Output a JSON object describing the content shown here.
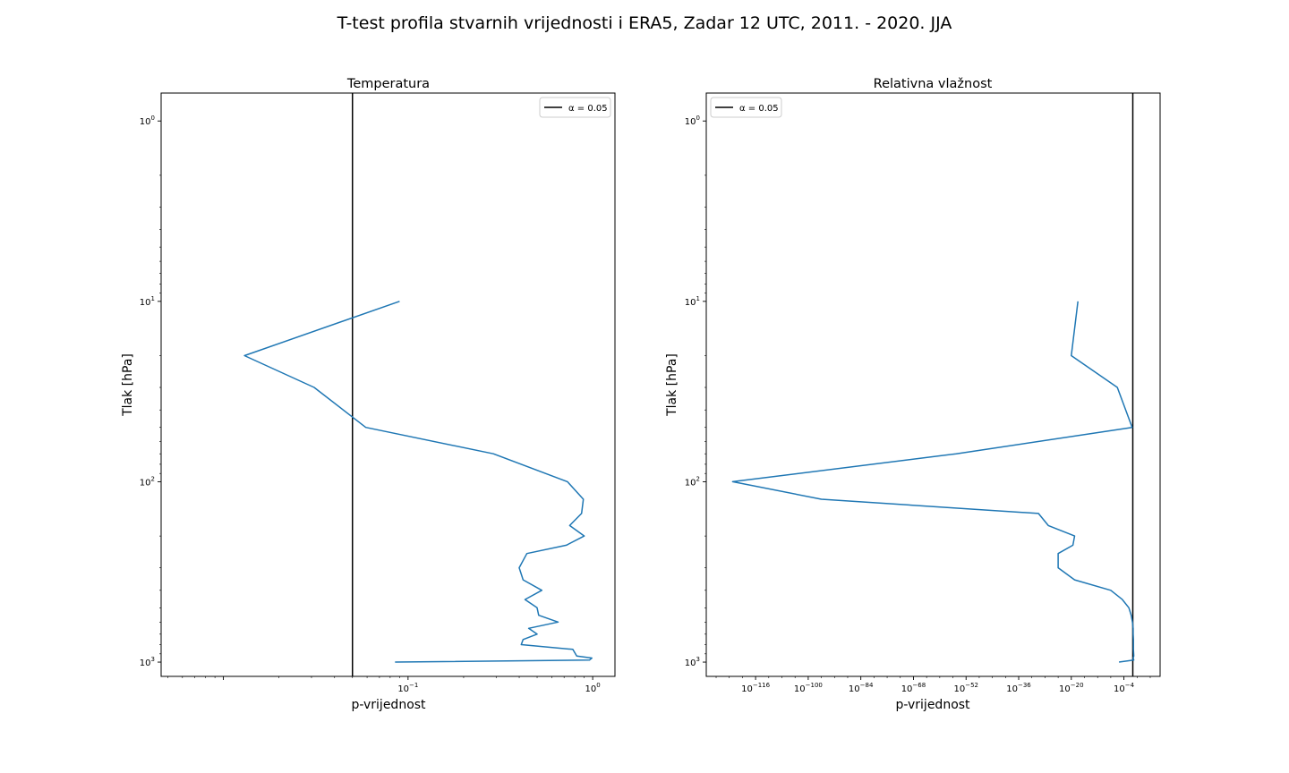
{
  "figure": {
    "suptitle": "T-test profila stvarnih vrijednosti i ERA5, Zadar 12 UTC, 2011. - 2020. JJA"
  },
  "chart_data": [
    {
      "type": "line",
      "title": "Temperatura",
      "xlabel": "p-vrijednost",
      "ylabel": "Tlak [hPa]",
      "xscale": "log",
      "yscale": "log",
      "yinverted": true,
      "xlim": [
        0.0046,
        1.32
      ],
      "ylim": [
        1200,
        0.7
      ],
      "grid": false,
      "legend": {
        "location": "top-right",
        "entries": [
          "α = 0.05"
        ]
      },
      "x_tick_labels": [
        {
          "base": "10",
          "exp": "−1",
          "value": 0.1
        },
        {
          "base": "10",
          "exp": "0",
          "value": 1
        }
      ],
      "y_tick_labels": [
        {
          "base": "10",
          "exp": "0",
          "value": 1
        },
        {
          "base": "10",
          "exp": "1",
          "value": 10
        },
        {
          "base": "10",
          "exp": "2",
          "value": 100
        },
        {
          "base": "10",
          "exp": "3",
          "value": 1000
        }
      ],
      "reference_line": {
        "name": "α = 0.05",
        "x": 0.05,
        "color": "#000000"
      },
      "series": [
        {
          "color": "#1f77b4",
          "pressure": [
            10,
            20,
            30,
            50,
            70,
            100,
            125,
            150,
            175,
            200,
            225,
            250,
            300,
            350,
            400,
            450,
            500,
            550,
            600,
            650,
            700,
            750,
            800,
            850,
            925,
            950,
            975,
            1000
          ],
          "p_value": [
            0.09,
            0.013,
            0.031,
            0.059,
            0.29,
            0.73,
            0.89,
            0.87,
            0.75,
            0.9,
            0.72,
            0.44,
            0.4,
            0.42,
            0.53,
            0.43,
            0.5,
            0.51,
            0.65,
            0.45,
            0.5,
            0.42,
            0.41,
            0.78,
            0.82,
            0.99,
            0.96,
            0.085
          ]
        }
      ]
    },
    {
      "type": "line",
      "title": "Relativna vlažnost",
      "xlabel": "p-vrijednost",
      "ylabel": "Tlak [hPa]",
      "xscale": "log",
      "yscale": "log",
      "yinverted": true,
      "xlim": [
        1e-131,
        10000000.0
      ],
      "ylim": [
        1200,
        0.7
      ],
      "grid": false,
      "legend": {
        "location": "top-left",
        "entries": [
          "α = 0.05"
        ]
      },
      "x_tick_labels": [
        {
          "base": "10",
          "exp": "−116",
          "value": -116
        },
        {
          "base": "10",
          "exp": "−100",
          "value": -100
        },
        {
          "base": "10",
          "exp": "−84",
          "value": -84
        },
        {
          "base": "10",
          "exp": "−68",
          "value": -68
        },
        {
          "base": "10",
          "exp": "−52",
          "value": -52
        },
        {
          "base": "10",
          "exp": "−36",
          "value": -36
        },
        {
          "base": "10",
          "exp": "−20",
          "value": -20
        },
        {
          "base": "10",
          "exp": "−4",
          "value": -4
        }
      ],
      "y_tick_labels": [
        {
          "base": "10",
          "exp": "0",
          "value": 1
        },
        {
          "base": "10",
          "exp": "1",
          "value": 10
        },
        {
          "base": "10",
          "exp": "2",
          "value": 100
        },
        {
          "base": "10",
          "exp": "3",
          "value": 1000
        }
      ],
      "reference_line": {
        "name": "α = 0.05",
        "x_log10": -1.3,
        "color": "#000000"
      },
      "series": [
        {
          "color": "#1f77b4",
          "pressure": [
            10,
            20,
            30,
            50,
            70,
            100,
            125,
            150,
            175,
            200,
            225,
            250,
            300,
            350,
            400,
            450,
            500,
            550,
            600,
            650,
            700,
            750,
            800,
            850,
            925,
            950,
            975,
            1000
          ],
          "p_value_log10": [
            -18,
            -20,
            -6,
            -1.5,
            -55,
            -123,
            -96,
            -30,
            -27,
            -19,
            -19.5,
            -24,
            -24,
            -19,
            -8,
            -4.5,
            -2.5,
            -1.8,
            -1.4,
            -1.2,
            -1.2,
            -1.1,
            -1.1,
            -1.1,
            -1.0,
            -1.2,
            -1.0,
            -5.5
          ]
        }
      ]
    }
  ]
}
